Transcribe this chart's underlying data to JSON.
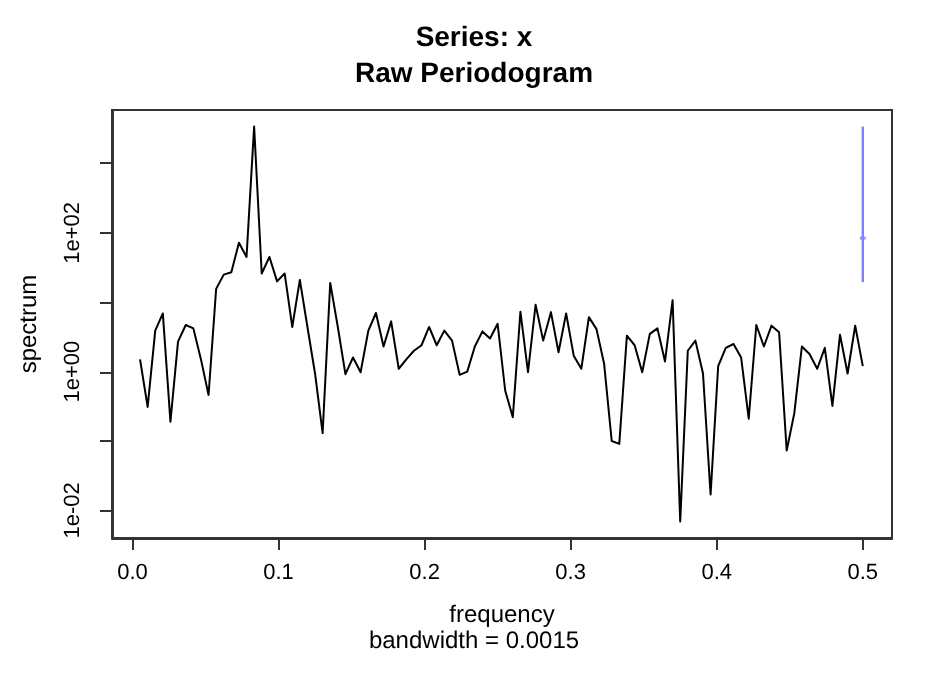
{
  "chart_data": {
    "type": "line",
    "title": "Series: x",
    "subtitle": "Raw Periodogram",
    "xlabel": "frequency",
    "ylabel": "spectrum",
    "annotations": [
      "bandwidth = 0.0015"
    ],
    "log": "y",
    "grid": false,
    "xlim": [
      -0.014,
      0.52
    ],
    "xticks": [
      {
        "value": 0,
        "label": "0.0"
      },
      0.1,
      0.2,
      0.3,
      0.4,
      0.5
    ],
    "ylim": [
      0.004,
      5900
    ],
    "yticks": [
      {
        "value": 0.01,
        "label": "1e-02"
      },
      {
        "value": 0.1,
        "label": null
      },
      {
        "value": 1,
        "label": "1e+00"
      },
      {
        "value": 10,
        "label": null
      },
      {
        "value": 100,
        "label": "1e+02"
      },
      {
        "value": 1000,
        "label": null
      }
    ],
    "series": [
      {
        "color": "#000000",
        "x": [
          0.0052,
          0.0104,
          0.0156,
          0.0208,
          0.026,
          0.0312,
          0.0365,
          0.0417,
          0.0469,
          0.0521,
          0.0573,
          0.0625,
          0.0677,
          0.0729,
          0.0781,
          0.0833,
          0.0885,
          0.0938,
          0.099,
          0.1042,
          0.1094,
          0.1146,
          0.1198,
          0.125,
          0.1302,
          0.1354,
          0.1406,
          0.1458,
          0.151,
          0.1562,
          0.1615,
          0.1667,
          0.1719,
          0.1771,
          0.1823,
          0.1875,
          0.1927,
          0.1979,
          0.2031,
          0.2083,
          0.2135,
          0.2188,
          0.224,
          0.2292,
          0.2344,
          0.2396,
          0.2448,
          0.25,
          0.2552,
          0.2604,
          0.2656,
          0.2708,
          0.276,
          0.2812,
          0.2865,
          0.2917,
          0.2969,
          0.3021,
          0.3073,
          0.3125,
          0.3177,
          0.3229,
          0.3281,
          0.3333,
          0.3385,
          0.3438,
          0.349,
          0.3542,
          0.3594,
          0.3646,
          0.3698,
          0.375,
          0.3802,
          0.3854,
          0.3906,
          0.3958,
          0.401,
          0.4062,
          0.4115,
          0.4167,
          0.4219,
          0.4271,
          0.4323,
          0.4375,
          0.4427,
          0.4479,
          0.4531,
          0.4583,
          0.4635,
          0.4688,
          0.474,
          0.4792,
          0.4844,
          0.4896,
          0.4948,
          0.5
        ],
        "values": [
          1.5,
          0.31,
          3.9,
          6.9,
          0.19,
          2.7,
          4.7,
          4.2,
          1.5,
          0.46,
          15.6,
          25,
          27,
          72,
          45,
          3400,
          26,
          45,
          20,
          26,
          4.4,
          21,
          4.4,
          0.94,
          0.13,
          19,
          4.4,
          0.92,
          1.6,
          0.98,
          3.9,
          7.0,
          2.3,
          5.3,
          1.1,
          1.5,
          2.0,
          2.4,
          4.4,
          2.4,
          3.9,
          2.8,
          0.9,
          1.0,
          2.3,
          3.8,
          3.0,
          4.9,
          0.53,
          0.22,
          7.3,
          0.98,
          9.2,
          2.8,
          7.2,
          1.9,
          6.9,
          1.7,
          1.1,
          6.1,
          4.1,
          1.3,
          0.1,
          0.091,
          3.3,
          2.4,
          0.98,
          3.5,
          4.2,
          1.4,
          10.7,
          0.0069,
          2.0,
          2.8,
          0.94,
          0.017,
          1.2,
          2.2,
          2.5,
          1.6,
          0.21,
          4.7,
          2.3,
          4.6,
          3.7,
          0.073,
          0.25,
          2.3,
          1.8,
          1.1,
          2.2,
          0.32,
          3.4,
          0.94,
          4.6,
          1.2
        ]
      },
      {
        "type": "scatter",
        "color": "#8080ff",
        "x": [
          0.5
        ],
        "values": [
          84
        ],
        "errors": [
          [
            19.5,
            3400
          ]
        ]
      }
    ]
  }
}
